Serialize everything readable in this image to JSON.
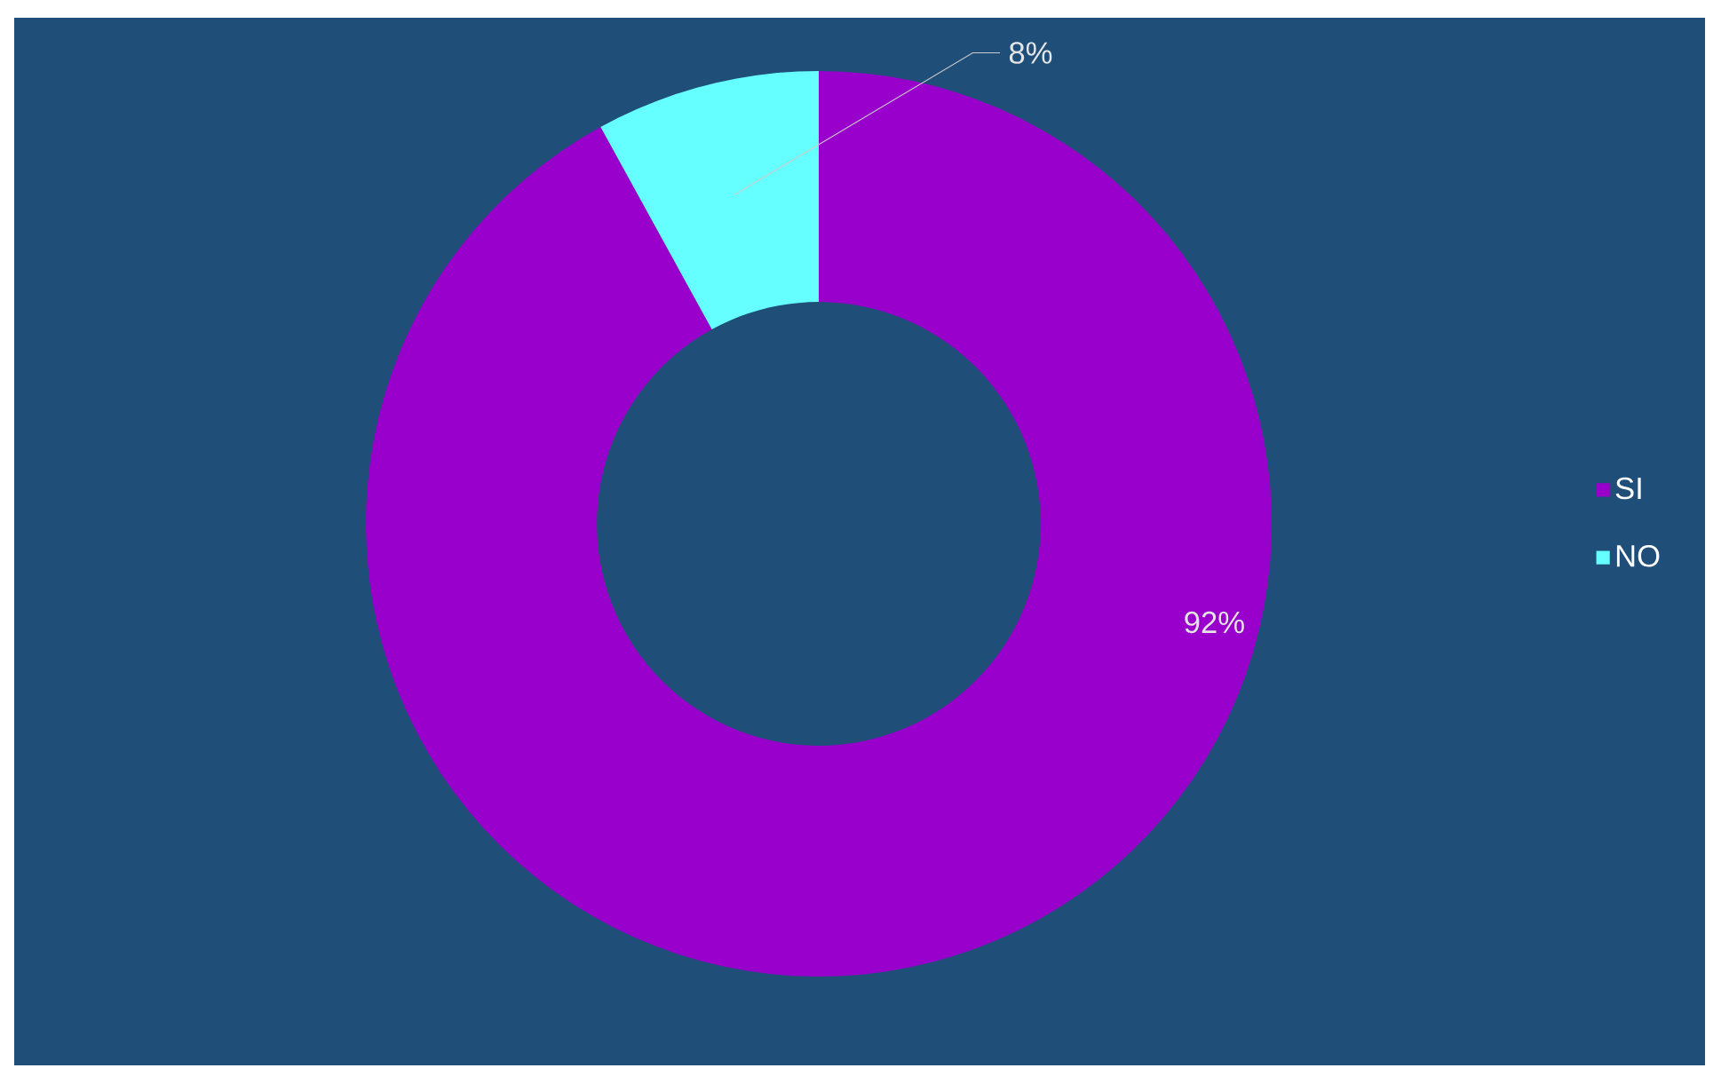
{
  "chart_data": {
    "type": "donut",
    "categories": [
      "SI",
      "NO"
    ],
    "values": [
      92,
      8
    ],
    "colors": [
      "#9900cc",
      "#66ffff"
    ],
    "value_labels": [
      "92%",
      "8%"
    ],
    "legend": "right"
  }
}
